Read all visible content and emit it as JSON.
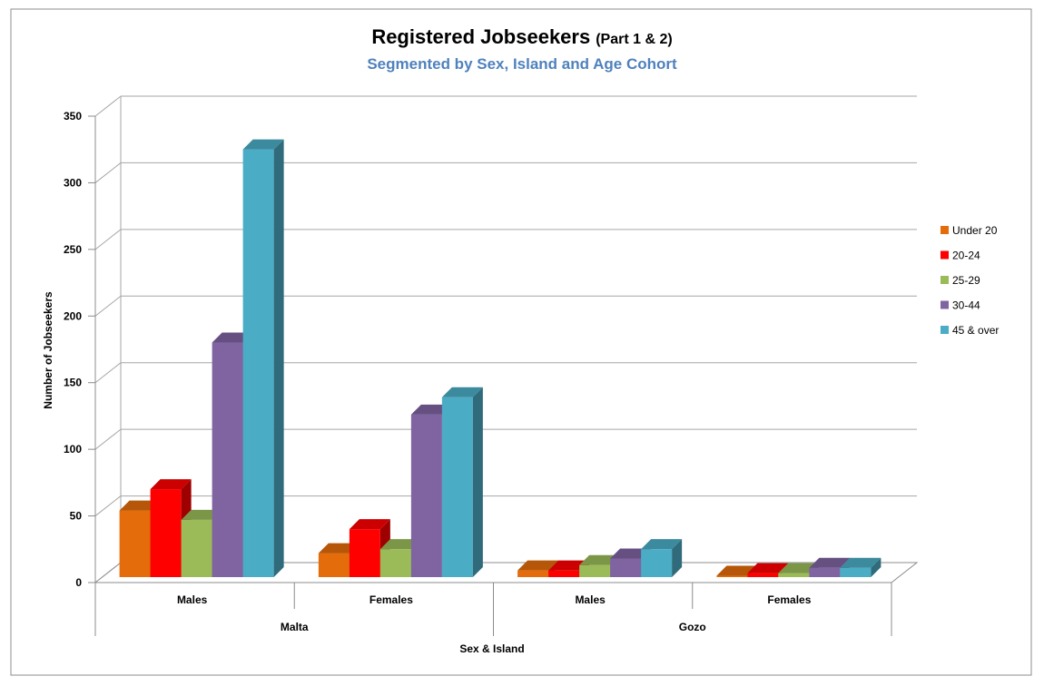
{
  "chart_data": {
    "type": "bar",
    "title": "Registered Jobseekers",
    "title_suffix": "(Part 1 & 2)",
    "subtitle": "Segmented by Sex, Island and Age Cohort",
    "ylabel": "Number of Jobseekers",
    "xlabel": "Sex & Island",
    "ylim": [
      0,
      350
    ],
    "yticks": [
      0,
      50,
      100,
      150,
      200,
      250,
      300,
      350
    ],
    "grid": true,
    "legend_position": "right",
    "categories": [
      "Males",
      "Females",
      "Males",
      "Females"
    ],
    "groups": [
      {
        "name": "Malta",
        "categories": [
          0,
          1
        ]
      },
      {
        "name": "Gozo",
        "categories": [
          2,
          3
        ]
      }
    ],
    "series": [
      {
        "name": "Under 20",
        "color": "#E46C0A",
        "values": [
          50,
          18,
          5,
          1
        ]
      },
      {
        "name": "20-24",
        "color": "#FF0000",
        "values": [
          66,
          36,
          5,
          3
        ]
      },
      {
        "name": "25-29",
        "color": "#9BBB59",
        "values": [
          43,
          21,
          9,
          3
        ]
      },
      {
        "name": "30-44",
        "color": "#8064A2",
        "values": [
          176,
          122,
          14,
          7
        ]
      },
      {
        "name": "45 & over",
        "color": "#4BACC6",
        "values": [
          321,
          135,
          21,
          7
        ]
      }
    ]
  }
}
